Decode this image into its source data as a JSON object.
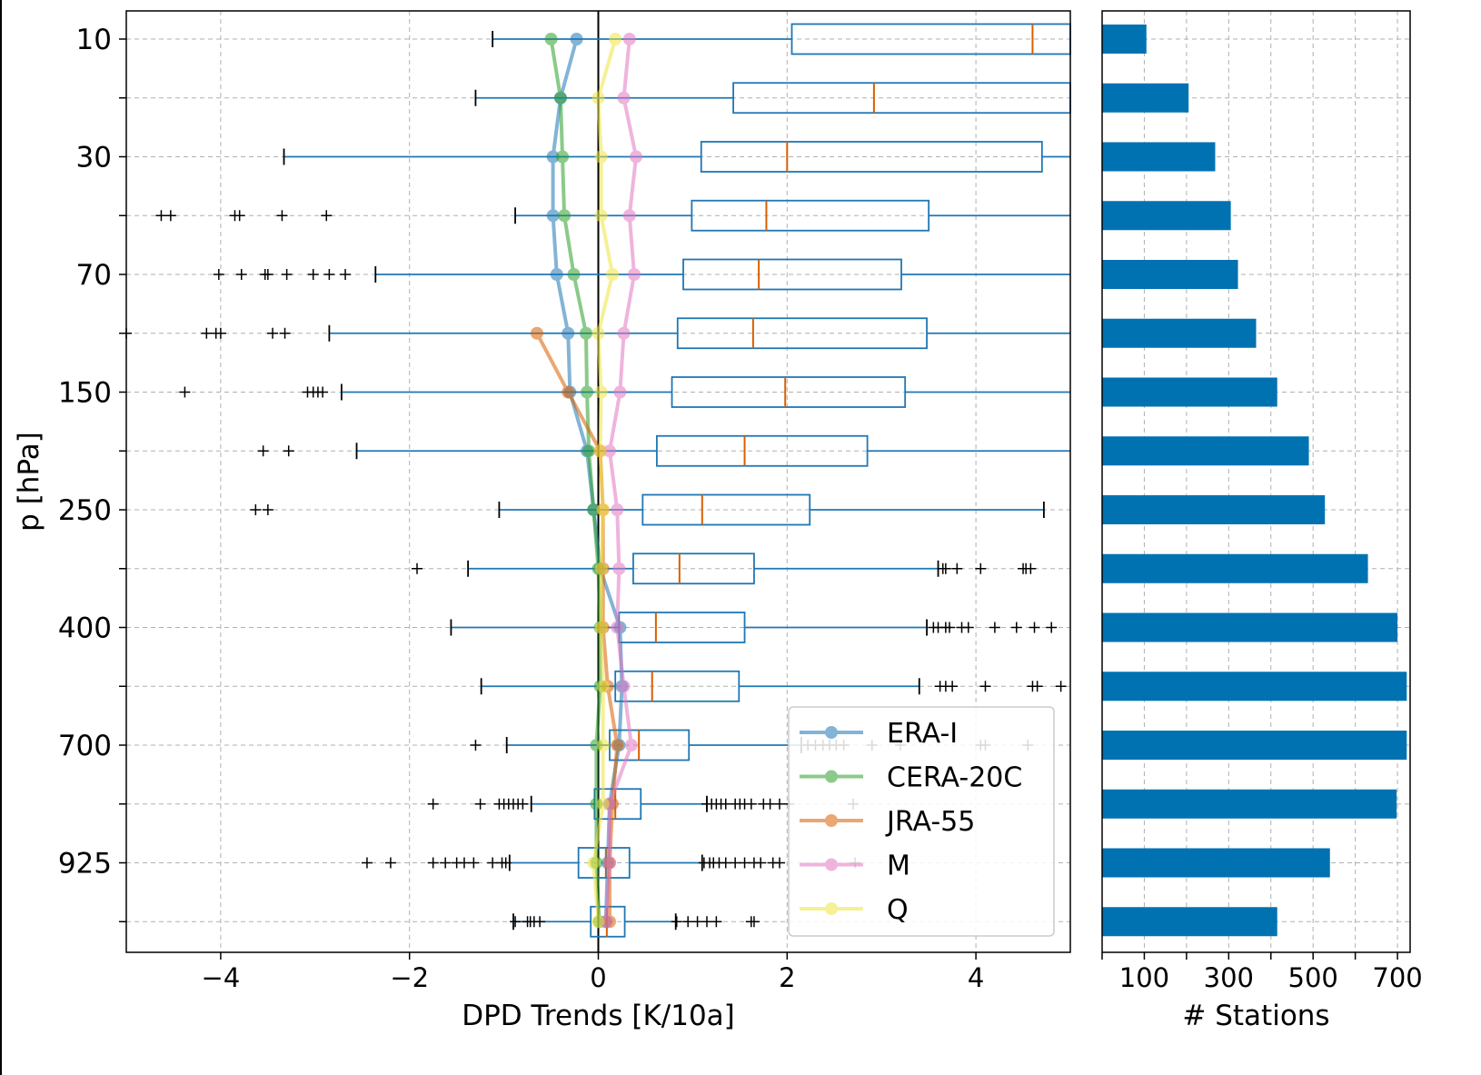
{
  "chart_data": [
    {
      "type": "box",
      "xlabel": "DPD Trends [K/10a]",
      "ylabel": "p [hPa]",
      "xlim": [
        -5,
        5
      ],
      "grid": true,
      "x_ticks": [
        -4,
        -2,
        0,
        2,
        4
      ],
      "x_tick_labels": [
        "−4",
        "−2",
        "0",
        "2",
        "4"
      ],
      "levels": [
        10,
        20,
        30,
        50,
        70,
        100,
        150,
        200,
        250,
        300,
        400,
        500,
        700,
        850,
        925,
        1000
      ],
      "y_tick_labels": [
        "10",
        "30",
        "70",
        "150",
        "250",
        "400",
        "700",
        "925"
      ],
      "y_tick_levels": [
        10,
        30,
        70,
        150,
        250,
        400,
        700,
        925
      ],
      "boxes": [
        {
          "level": 10,
          "whislo": -1.12,
          "q1": 2.05,
          "med": 4.6,
          "q3": 5.2,
          "whishi": 5.5
        },
        {
          "level": 20,
          "whislo": -1.3,
          "q1": 1.43,
          "med": 2.92,
          "q3": 5.2,
          "whishi": 5.5
        },
        {
          "level": 30,
          "whislo": -3.33,
          "q1": 1.09,
          "med": 2.0,
          "q3": 4.7,
          "whishi": 5.5
        },
        {
          "level": 50,
          "whislo": -0.88,
          "q1": 0.99,
          "med": 1.78,
          "q3": 3.5,
          "whishi": 5.5
        },
        {
          "level": 70,
          "whislo": -2.36,
          "q1": 0.9,
          "med": 1.7,
          "q3": 3.21,
          "whishi": 5.5
        },
        {
          "level": 100,
          "whislo": -2.85,
          "q1": 0.84,
          "med": 1.64,
          "q3": 3.48,
          "whishi": 5.5
        },
        {
          "level": 150,
          "whislo": -2.72,
          "q1": 0.78,
          "med": 1.98,
          "q3": 3.25,
          "whishi": 5.5
        },
        {
          "level": 200,
          "whislo": -2.56,
          "q1": 0.62,
          "med": 1.55,
          "q3": 2.85,
          "whishi": 5.5
        },
        {
          "level": 250,
          "whislo": -1.05,
          "q1": 0.47,
          "med": 1.1,
          "q3": 2.24,
          "whishi": 4.72
        },
        {
          "level": 300,
          "whislo": -1.38,
          "q1": 0.37,
          "med": 0.86,
          "q3": 1.65,
          "whishi": 3.6
        },
        {
          "level": 400,
          "whislo": -1.56,
          "q1": 0.22,
          "med": 0.61,
          "q3": 1.55,
          "whishi": 3.48
        },
        {
          "level": 500,
          "whislo": -1.24,
          "q1": 0.18,
          "med": 0.57,
          "q3": 1.49,
          "whishi": 3.4
        },
        {
          "level": 700,
          "whislo": -0.97,
          "q1": 0.12,
          "med": 0.43,
          "q3": 0.96,
          "whishi": 2.15
        },
        {
          "level": 850,
          "whislo": -0.71,
          "q1": -0.04,
          "med": 0.18,
          "q3": 0.45,
          "whishi": 1.15
        },
        {
          "level": 925,
          "whislo": -0.94,
          "q1": -0.21,
          "med": 0.08,
          "q3": 0.33,
          "whishi": 1.1
        },
        {
          "level": 1000,
          "whislo": -0.9,
          "q1": -0.08,
          "med": 0.09,
          "q3": 0.28,
          "whishi": 0.82
        }
      ],
      "fliers": [
        {
          "level": 50,
          "x": [
            -4.63,
            -4.53,
            -3.85,
            -3.8,
            -3.35,
            -2.88
          ]
        },
        {
          "level": 70,
          "x": [
            -4.02,
            -3.78,
            -3.53,
            -3.5,
            -3.3,
            -3.02,
            -2.85,
            -2.68
          ]
        },
        {
          "level": 100,
          "x": [
            -5.0,
            -4.15,
            -4.05,
            -4.0,
            -3.45,
            -3.32
          ]
        },
        {
          "level": 150,
          "x": [
            -4.38,
            -3.08,
            -3.02,
            -2.97,
            -2.92
          ]
        },
        {
          "level": 200,
          "x": [
            -3.55,
            -3.28
          ]
        },
        {
          "level": 250,
          "x": [
            -3.63,
            -3.5
          ]
        },
        {
          "level": 300,
          "x": [
            -1.92,
            3.65,
            3.68,
            3.8,
            4.05,
            4.5,
            4.53,
            4.58
          ]
        },
        {
          "level": 400,
          "x": [
            3.55,
            3.6,
            3.68,
            3.72,
            3.85,
            3.92,
            4.2,
            4.43,
            4.62,
            4.8
          ]
        },
        {
          "level": 500,
          "x": [
            3.62,
            3.68,
            3.75,
            4.1,
            4.6,
            4.65,
            4.9
          ]
        },
        {
          "level": 700,
          "x": [
            -1.3,
            2.22,
            2.3,
            2.38,
            2.45,
            2.52,
            2.6,
            2.9,
            3.2,
            4.05,
            4.1,
            4.55
          ]
        },
        {
          "level": 850,
          "x": [
            -1.75,
            -1.25,
            -1.05,
            -1.0,
            -0.95,
            -0.9,
            -0.85,
            -0.8,
            1.15,
            1.2,
            1.25,
            1.3,
            1.35,
            1.45,
            1.5,
            1.55,
            1.62,
            1.75,
            1.82,
            1.92,
            2.02,
            2.7
          ]
        },
        {
          "level": 925,
          "x": [
            -2.45,
            -2.2,
            -1.75,
            -1.62,
            -1.5,
            -1.42,
            -1.32,
            -1.12,
            -1.02,
            -0.98,
            1.12,
            1.18,
            1.22,
            1.28,
            1.35,
            1.45,
            1.55,
            1.65,
            1.72,
            1.85,
            1.92,
            2.72
          ]
        },
        {
          "level": 1000,
          "x": [
            -0.88,
            -0.75,
            -0.72,
            -0.68,
            -0.62,
            0.83,
            0.95,
            1.05,
            1.15,
            1.25,
            1.62,
            1.65
          ]
        }
      ],
      "series": [
        {
          "name": "ERA-I",
          "color": "#1f77b4",
          "values": [
            -0.23,
            -0.4,
            -0.48,
            -0.48,
            -0.44,
            -0.32,
            -0.3,
            -0.12,
            -0.05,
            0.02,
            0.23,
            0.25,
            0.22,
            0.12,
            0.1,
            0.08
          ]
        },
        {
          "name": "CERA-20C",
          "color": "#2ca02c",
          "values": [
            -0.5,
            -0.4,
            -0.38,
            -0.36,
            -0.26,
            -0.13,
            -0.12,
            -0.1,
            -0.05,
            0.0,
            0.02,
            0.02,
            -0.02,
            -0.02,
            -0.02,
            0.01
          ]
        },
        {
          "name": "JRA-55",
          "color": "#d95f02",
          "values": [
            null,
            null,
            null,
            null,
            null,
            -0.65,
            -0.32,
            0.02,
            0.05,
            0.05,
            0.05,
            0.1,
            0.2,
            0.15,
            0.12,
            0.12
          ]
        },
        {
          "name": "M",
          "color": "#e377c2",
          "values": [
            0.33,
            0.27,
            0.4,
            0.33,
            0.38,
            0.27,
            0.23,
            0.12,
            0.2,
            0.22,
            0.2,
            0.27,
            0.35,
            0.12,
            0.12,
            0.08
          ]
        },
        {
          "name": "Q",
          "color": "#f0e442",
          "values": [
            0.18,
            0.0,
            0.03,
            0.03,
            0.15,
            0.0,
            0.03,
            0.02,
            0.05,
            0.03,
            0.03,
            0.05,
            0.05,
            0.05,
            -0.05,
            0.0
          ]
        }
      ],
      "legend": {
        "placement": "lower-right",
        "entries": [
          "ERA-I",
          "CERA-20C",
          "JRA-55",
          "M",
          "Q"
        ]
      }
    },
    {
      "type": "bar",
      "orientation": "horizontal",
      "xlabel": "# Stations",
      "x_ticks": [
        100,
        300,
        500,
        700
      ],
      "x_tick_labels": [
        "100",
        "300",
        "500",
        "700"
      ],
      "xlim": [
        0,
        730
      ],
      "categories": [
        10,
        20,
        30,
        50,
        70,
        100,
        150,
        200,
        250,
        300,
        400,
        500,
        700,
        850,
        925,
        1000
      ],
      "values": [
        105,
        205,
        268,
        305,
        322,
        365,
        415,
        490,
        528,
        630,
        700,
        722,
        722,
        698,
        540,
        415
      ],
      "color": "#0072b2"
    }
  ]
}
